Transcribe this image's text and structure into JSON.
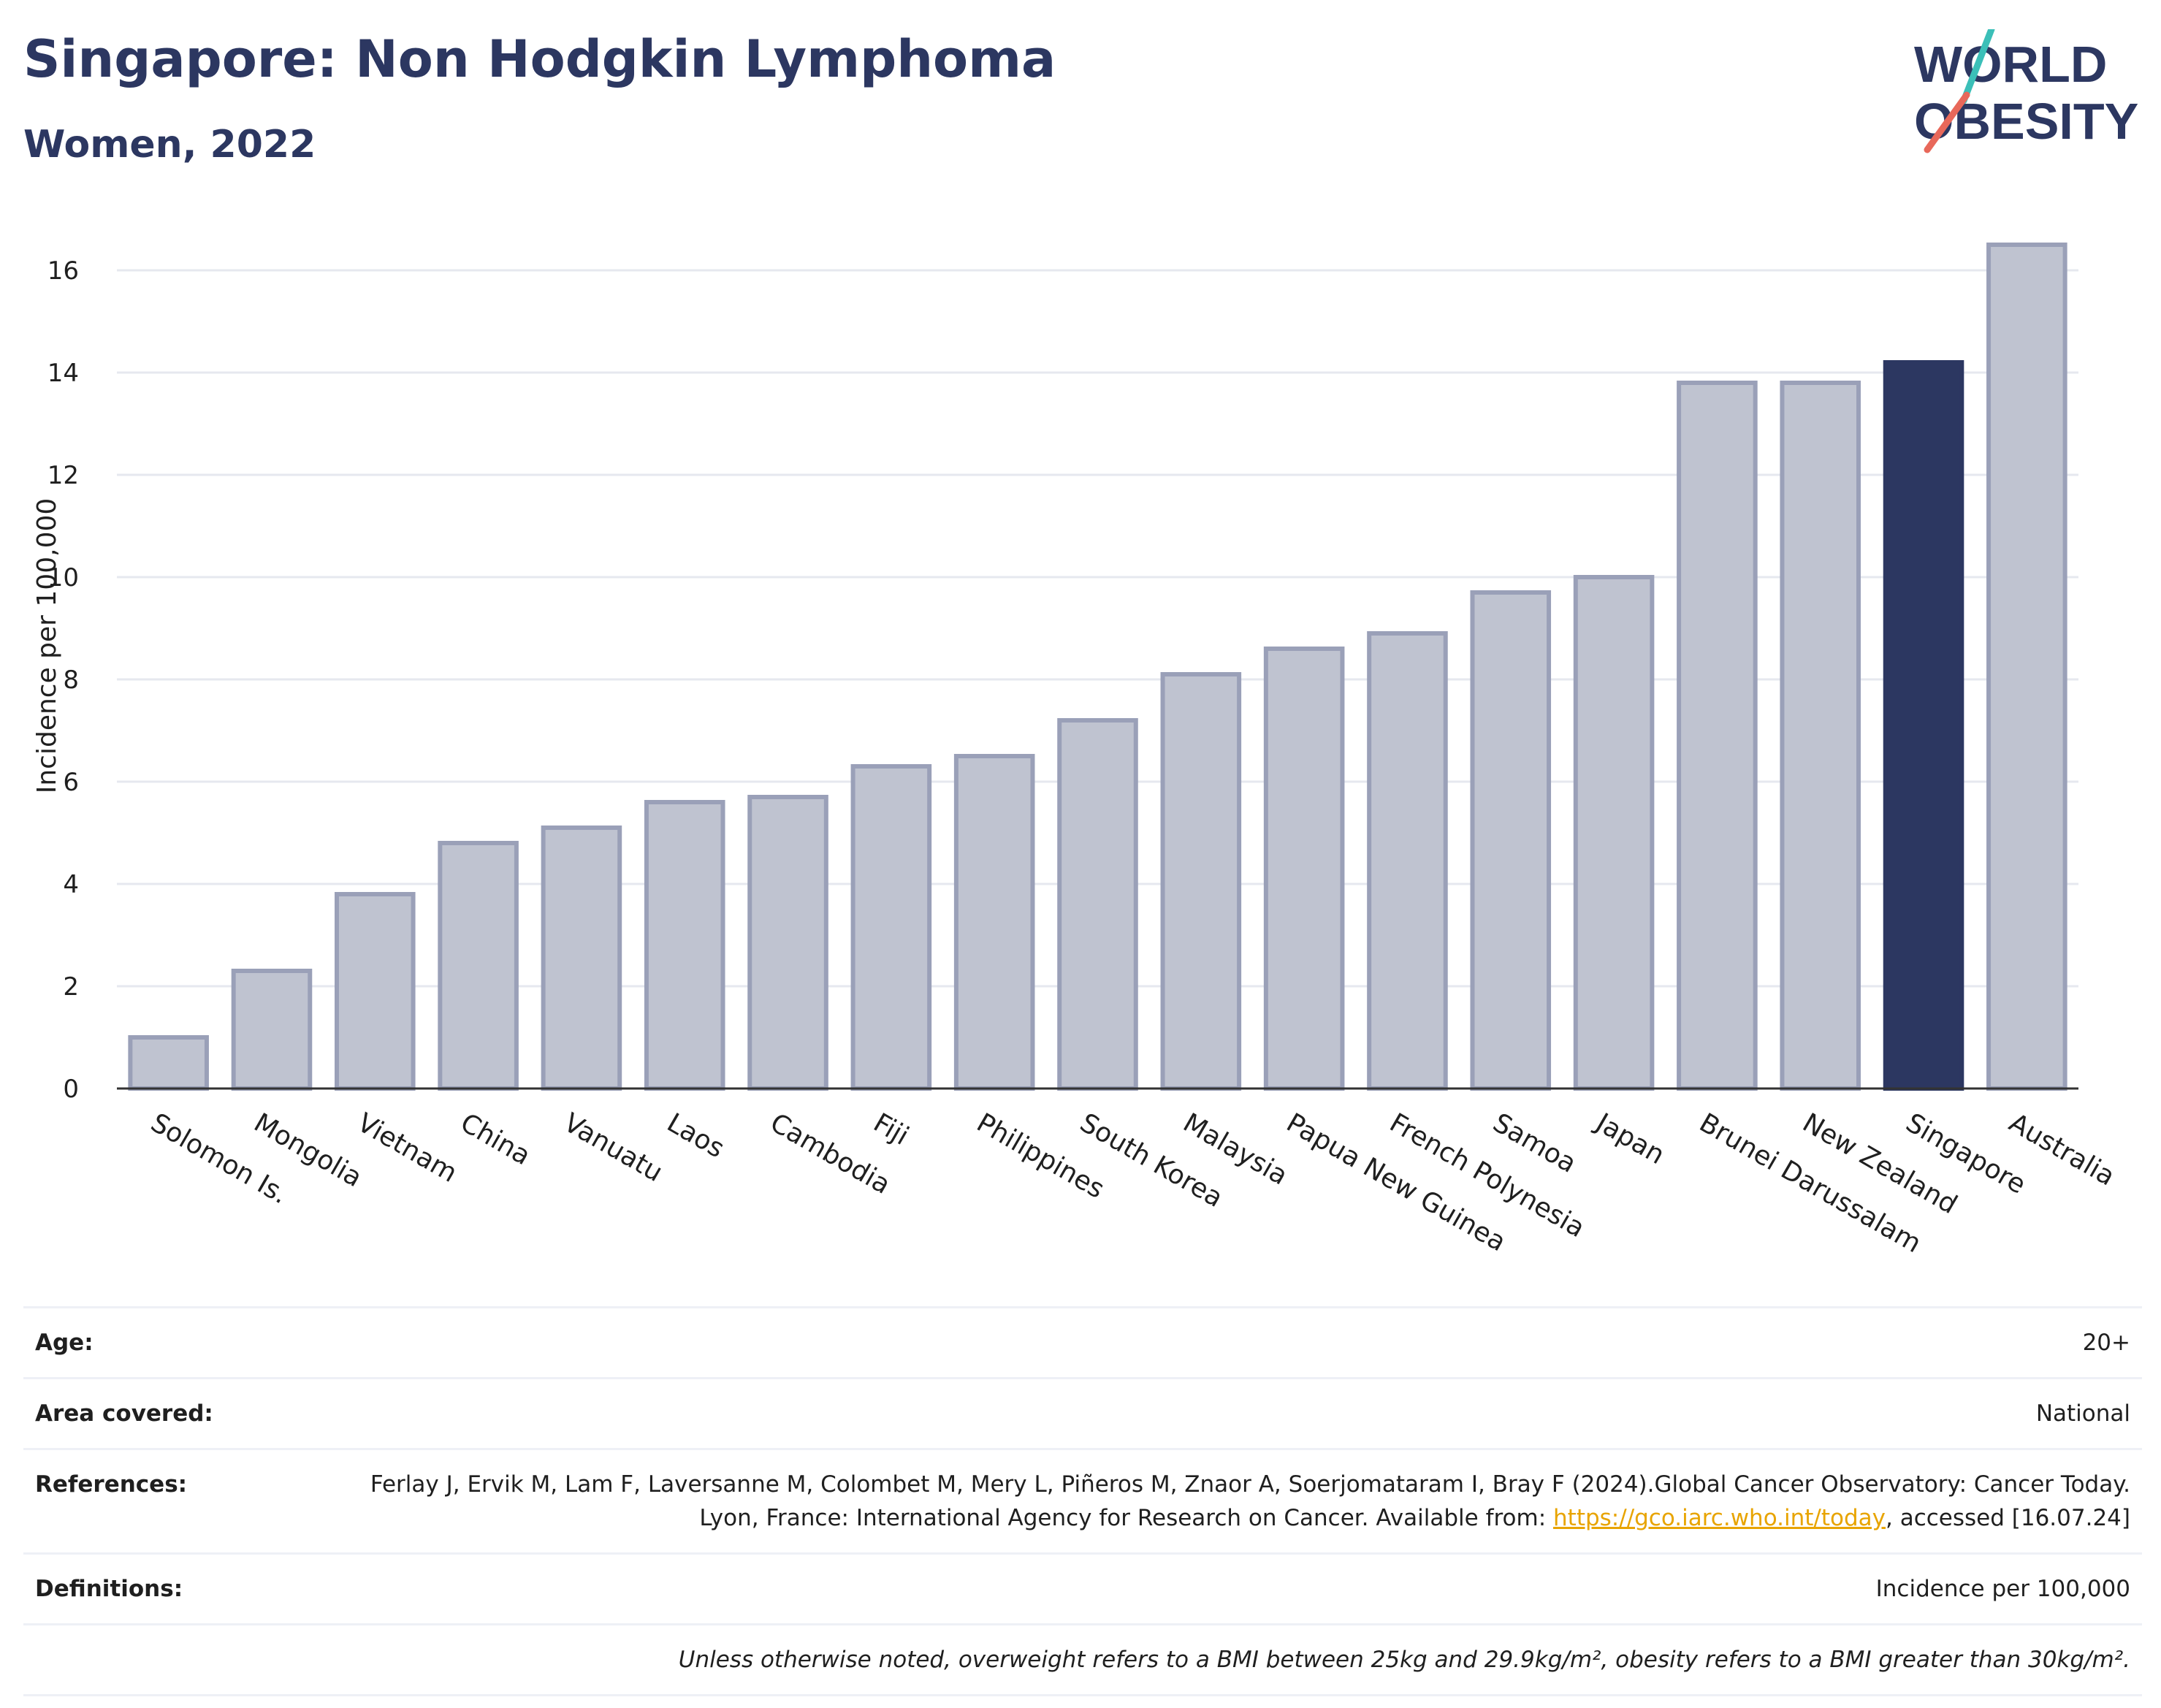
{
  "header": {
    "title": "Singapore: Non Hodgkin Lymphoma",
    "subtitle": "Women, 2022"
  },
  "logo": {
    "line1": "WORLD",
    "line2": "OBESITY"
  },
  "chart_data": {
    "type": "bar",
    "title": "Singapore: Non Hodgkin Lymphoma",
    "subtitle": "Women, 2022",
    "ylabel": "Incidence per 100,000",
    "xlabel": "",
    "ylim": [
      0,
      17
    ],
    "yticks": [
      0,
      2,
      4,
      6,
      8,
      10,
      12,
      14,
      16
    ],
    "grid": true,
    "highlight": "Singapore",
    "colors": {
      "bar": "#bfc3d0",
      "bar_border": "#9aa0b8",
      "highlight": "#2c3761",
      "grid": "#e6e8ef",
      "axis": "#333333"
    },
    "categories": [
      "Solomon Is.",
      "Mongolia",
      "Vietnam",
      "China",
      "Vanuatu",
      "Laos",
      "Cambodia",
      "Fiji",
      "Philippines",
      "South Korea",
      "Malaysia",
      "Papua New Guinea",
      "French Polynesia",
      "Samoa",
      "Japan",
      "Brunei Darussalam",
      "New Zealand",
      "Singapore",
      "Australia"
    ],
    "values": [
      1.0,
      2.3,
      3.8,
      4.8,
      5.1,
      5.6,
      5.7,
      6.3,
      6.5,
      7.2,
      8.1,
      8.6,
      8.9,
      9.7,
      10.0,
      13.8,
      13.8,
      14.2,
      16.5
    ]
  },
  "info": {
    "age_label": "Age:",
    "age_value": "20+",
    "area_label": "Area covered:",
    "area_value": "National",
    "references_label": "References:",
    "references_text1": "Ferlay J, Ervik M, Lam F, Laversanne M, Colombet M, Mery L, Piñeros M, Znaor A, Soerjomataram I, Bray F (2024).Global Cancer Observatory: Cancer Today. Lyon, France: International Agency for Research on Cancer. Available from: ",
    "references_link": "https://gco.iarc.who.int/today",
    "references_text2": ", accessed [16.07.24]",
    "definitions_label": "Definitions:",
    "definitions_value": "Incidence per 100,000",
    "note": "Unless otherwise noted, overweight refers to a BMI between 25kg and 29.9kg/m², obesity refers to a BMI greater than 30kg/m²."
  }
}
